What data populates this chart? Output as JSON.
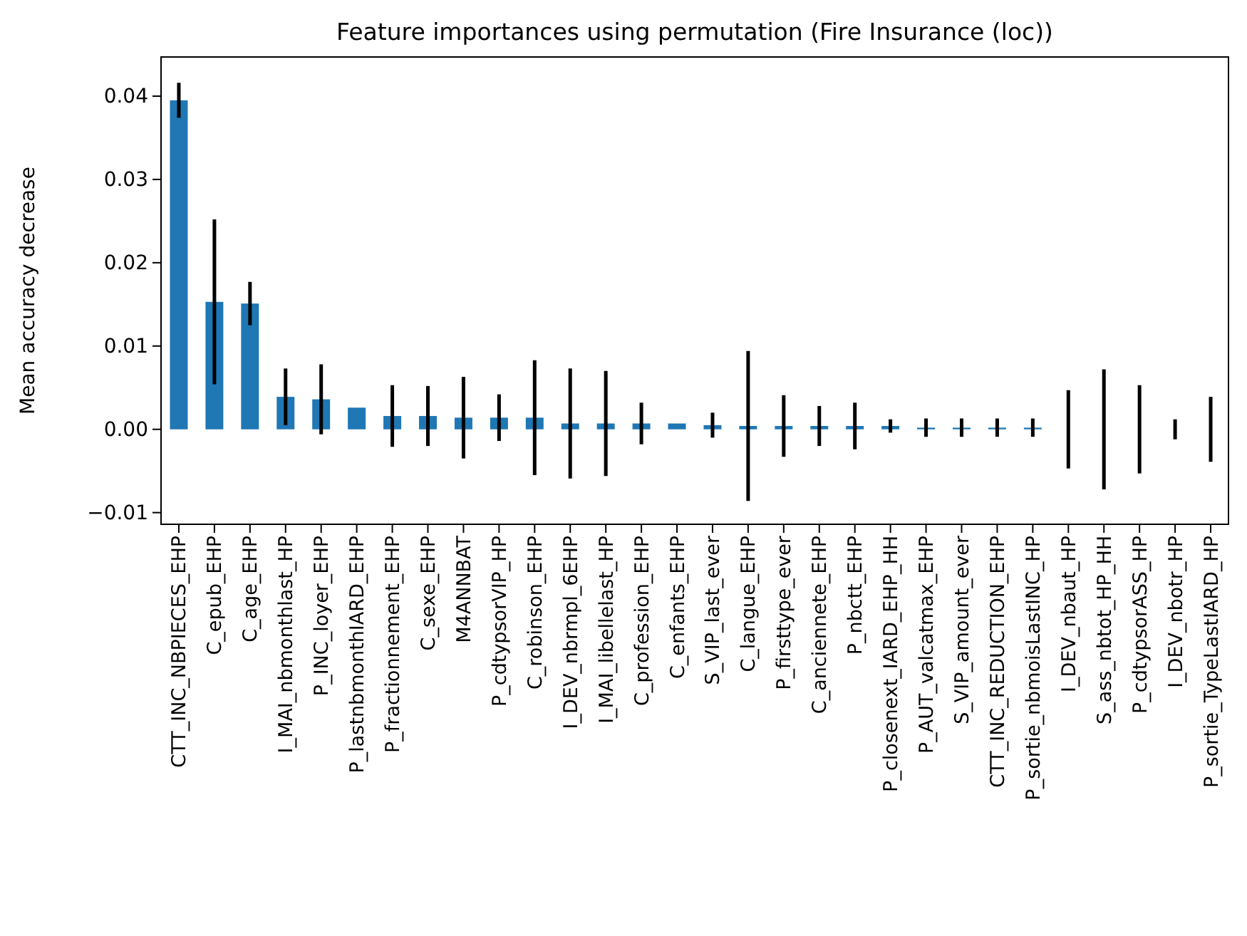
{
  "chart_data": {
    "type": "bar",
    "title": "Feature importances using permutation (Fire Insurance (loc))",
    "ylabel": "Mean accuracy decrease",
    "categories": [
      "CTT_INC_NBPIECES_EHP",
      "C_epub_EHP",
      "C_age_EHP",
      "I_MAI_nbmonthlast_HP",
      "P_INC_loyer_EHP",
      "P_lastnbmonthIARD_EHP",
      "P_fractionnement_EHP",
      "C_sexe_EHP",
      "M4ANNBAT",
      "P_cdtypsorVIP_HP",
      "C_robinson_EHP",
      "I_DEV_nbrmpl_6EHP",
      "I_MAI_libellelast_HP",
      "C_profession_EHP",
      "C_enfants_EHP",
      "S_VIP_last_ever",
      "C_langue_EHP",
      "P_firsttype_ever",
      "C_anciennete_EHP",
      "P_nbctt_EHP",
      "P_closenext_IARD_EHP_HH",
      "P_AUT_valcatmax_EHP",
      "S_VIP_amount_ever",
      "CTT_INC_REDUCTION_EHP",
      "P_sortie_nbmoisLastINC_HP",
      "I_DEV_nbaut_HP",
      "S_ass_nbtot_HP_HH",
      "P_cdtypsorASS_HP",
      "I_DEV_nbotr_HP",
      "P_sortie_TypeLastIARD_HP"
    ],
    "values": [
      0.0395,
      0.0153,
      0.0151,
      0.0039,
      0.0036,
      0.0026,
      0.0016,
      0.0016,
      0.0014,
      0.0014,
      0.0014,
      0.0007,
      0.0007,
      0.0007,
      0.0007,
      0.0005,
      0.0004,
      0.0004,
      0.0004,
      0.0004,
      0.0004,
      0.0002,
      0.0002,
      0.0002,
      0.0002,
      0,
      0,
      0,
      0,
      0
    ],
    "errors": [
      0.0021,
      0.0099,
      0.0026,
      0.0034,
      0.0042,
      null,
      0.0037,
      0.0036,
      0.0049,
      0.0028,
      0.0069,
      0.0066,
      0.0063,
      0.0025,
      null,
      0.0015,
      0.009,
      0.0037,
      0.0024,
      0.0028,
      0.0008,
      0.0011,
      0.0011,
      0.0011,
      0.0011,
      0.0047,
      0.0072,
      0.0053,
      0.0012,
      0.0039
    ],
    "color": "#1f77b4",
    "ylim": [
      -0.0114,
      0.0447
    ],
    "yticks": [
      {
        "value": -0.01,
        "label": "−0.01"
      },
      {
        "value": 0,
        "label": "0.00"
      },
      {
        "value": 0.01,
        "label": "0.01"
      },
      {
        "value": 0.02,
        "label": "0.02"
      },
      {
        "value": 0.03,
        "label": "0.03"
      },
      {
        "value": 0.04,
        "label": "0.04"
      }
    ]
  }
}
